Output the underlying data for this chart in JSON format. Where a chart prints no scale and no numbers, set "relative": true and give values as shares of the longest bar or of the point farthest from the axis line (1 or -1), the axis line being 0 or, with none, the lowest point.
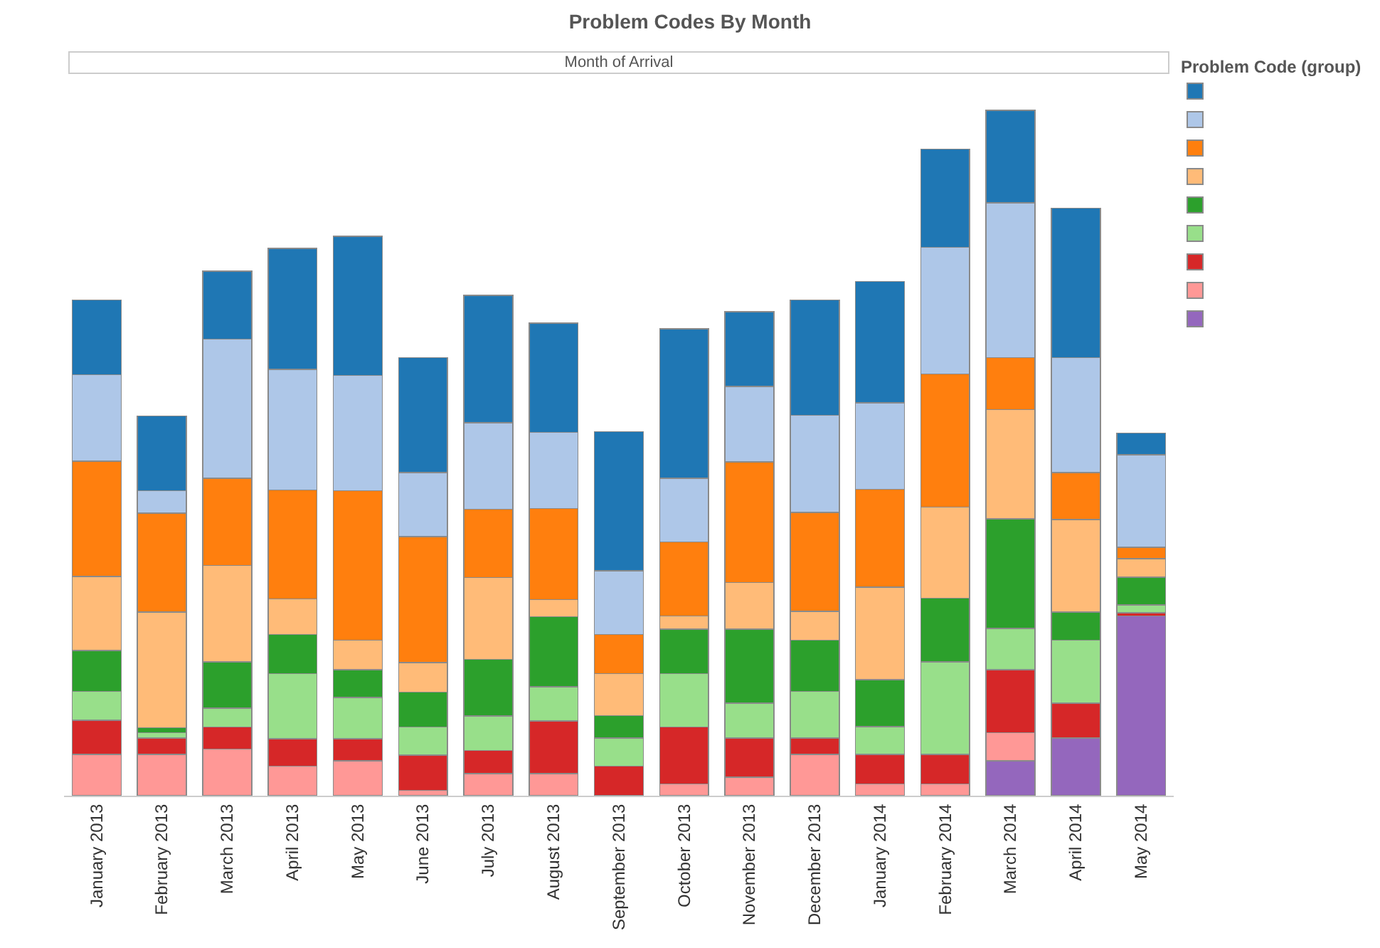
{
  "chart_data": {
    "type": "bar",
    "title": "Problem Codes By Month",
    "xlabel": "Month of Arrival",
    "legend_title": "Problem Code (group)",
    "grid": false,
    "stacked": true,
    "relative": true,
    "categories": [
      "January 2013",
      "February 2013",
      "March 2013",
      "April 2013",
      "May 2013",
      "June 2013",
      "July 2013",
      "August 2013",
      "September 2013",
      "October 2013",
      "November 2013",
      "December 2013",
      "January 2014",
      "February 2014",
      "March 2014",
      "April 2014",
      "May 2014"
    ],
    "series": [
      {
        "color": "#9467bd",
        "values": [
          0,
          0,
          0,
          0,
          0,
          0,
          0,
          0,
          0,
          0,
          0,
          0,
          0,
          0,
          0.051,
          0.084,
          0.262
        ]
      },
      {
        "color": "#ff9896",
        "values": [
          0.06,
          0.06,
          0.068,
          0.043,
          0.051,
          0.008,
          0.032,
          0.032,
          0,
          0.017,
          0.027,
          0.06,
          0.017,
          0.017,
          0.041,
          0,
          0
        ]
      },
      {
        "color": "#d62728",
        "values": [
          0.05,
          0.024,
          0.032,
          0.04,
          0.032,
          0.051,
          0.034,
          0.077,
          0.043,
          0.083,
          0.057,
          0.024,
          0.043,
          0.043,
          0.092,
          0.051,
          0.005
        ]
      },
      {
        "color": "#98df8a",
        "values": [
          0.042,
          0.008,
          0.028,
          0.095,
          0.06,
          0.041,
          0.05,
          0.05,
          0.041,
          0.078,
          0.051,
          0.068,
          0.041,
          0.135,
          0.06,
          0.092,
          0.011
        ]
      },
      {
        "color": "#2ca02c",
        "values": [
          0.06,
          0.007,
          0.067,
          0.057,
          0.041,
          0.051,
          0.083,
          0.102,
          0.033,
          0.065,
          0.108,
          0.075,
          0.068,
          0.093,
          0.16,
          0.041,
          0.041
        ]
      },
      {
        "color": "#ffbb78",
        "values": [
          0.108,
          0.169,
          0.141,
          0.052,
          0.043,
          0.043,
          0.119,
          0.025,
          0.061,
          0.019,
          0.068,
          0.042,
          0.135,
          0.133,
          0.159,
          0.135,
          0.027
        ]
      },
      {
        "color": "#ff7f0e",
        "values": [
          0.168,
          0.144,
          0.127,
          0.159,
          0.218,
          0.184,
          0.1,
          0.133,
          0.057,
          0.108,
          0.176,
          0.144,
          0.143,
          0.194,
          0.076,
          0.068,
          0.016
        ]
      },
      {
        "color": "#aec7e8",
        "values": [
          0.126,
          0.033,
          0.203,
          0.176,
          0.168,
          0.093,
          0.126,
          0.111,
          0.093,
          0.093,
          0.11,
          0.142,
          0.126,
          0.185,
          0.226,
          0.168,
          0.135
        ]
      },
      {
        "color": "#1f77b4",
        "values": [
          0.109,
          0.109,
          0.099,
          0.176,
          0.203,
          0.168,
          0.186,
          0.159,
          0.203,
          0.218,
          0.109,
          0.168,
          0.177,
          0.143,
          0.135,
          0.218,
          0.032
        ]
      }
    ]
  }
}
